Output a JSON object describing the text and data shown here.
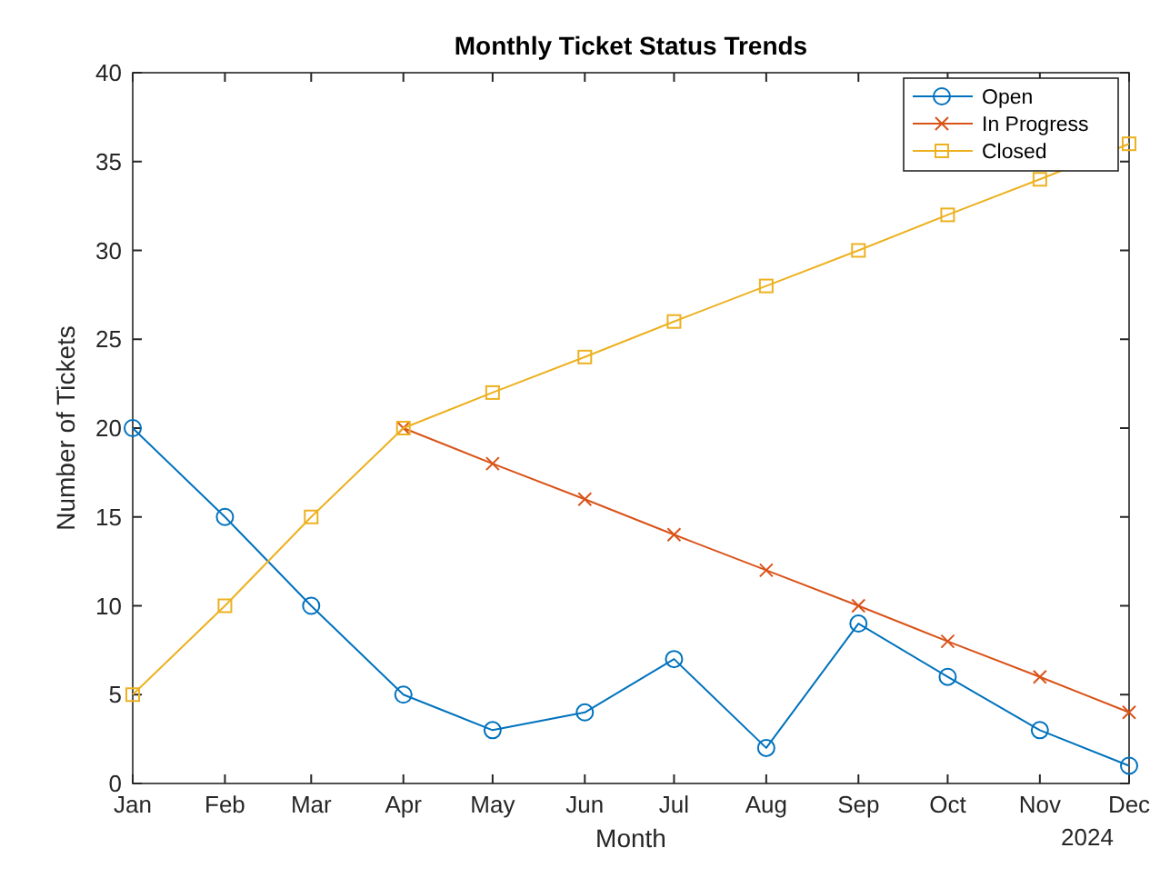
{
  "chart_data": {
    "type": "line",
    "title": "Monthly Ticket Status Trends",
    "xlabel": "Month",
    "ylabel": "Number of Tickets",
    "x": [
      "2024-01",
      "2024-02",
      "2024-03",
      "2024-04",
      "2024-05",
      "2024-06",
      "2024-07",
      "2024-08",
      "2024-09",
      "2024-10",
      "2024-11",
      "2024-12"
    ],
    "xlim": [
      "2024-01",
      "2024-12"
    ],
    "xticks": [
      {
        "value": "2024-01",
        "label": "Jan"
      },
      {
        "value": "2024-02",
        "label": "Feb"
      },
      {
        "value": "2024-03",
        "label": "Mar"
      },
      {
        "value": "2024-04",
        "label": "Apr"
      },
      {
        "value": "2024-05",
        "label": "May"
      },
      {
        "value": "2024-06",
        "label": "Jun"
      },
      {
        "value": "2024-07",
        "label": "Jul"
      },
      {
        "value": "2024-08",
        "label": "Aug"
      },
      {
        "value": "2024-09",
        "label": "Sep"
      },
      {
        "value": "2024-10",
        "label": "Oct"
      },
      {
        "value": "2024-11",
        "label": "Nov"
      },
      {
        "value": "2024-12",
        "label": "Dec"
      }
    ],
    "ylim": [
      0,
      40
    ],
    "yticks": [
      0,
      5,
      10,
      15,
      20,
      25,
      30,
      35,
      40
    ],
    "series": [
      {
        "name": "Open",
        "color": "#0072bd",
        "marker": "circle",
        "values": [
          20,
          15,
          10,
          5,
          3,
          4,
          7,
          2,
          9,
          6,
          3,
          1
        ]
      },
      {
        "name": "In Progress",
        "color": "#d95319",
        "marker": "cross",
        "values": [
          null,
          null,
          null,
          20,
          18,
          16,
          14,
          12,
          10,
          8,
          6,
          4
        ]
      },
      {
        "name": "Closed",
        "color": "#edb120",
        "marker": "square",
        "values": [
          5,
          10,
          15,
          20,
          22,
          24,
          26,
          28,
          30,
          32,
          34,
          36
        ]
      }
    ],
    "annotations": [
      "2024"
    ],
    "grid": false,
    "legend": "top right",
    "line_style": "solid"
  }
}
